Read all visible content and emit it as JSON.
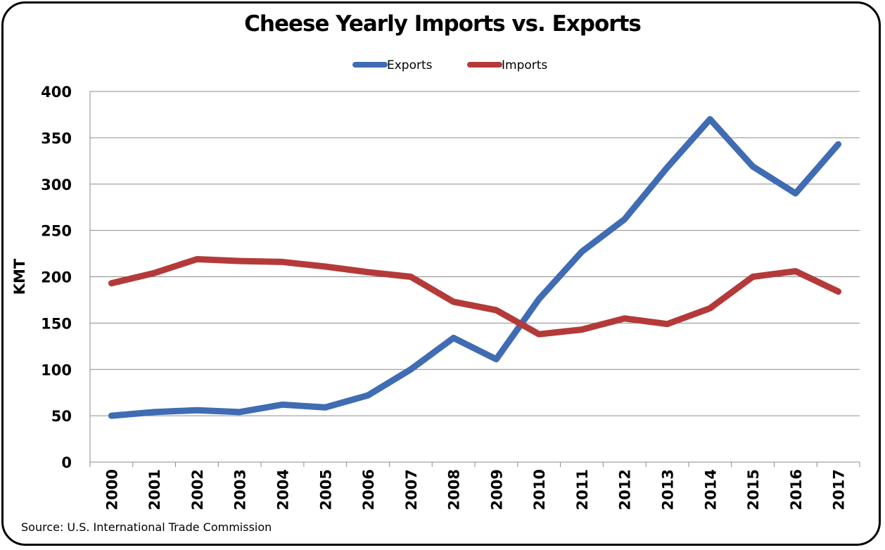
{
  "chart_data": {
    "type": "line",
    "title": "Cheese Yearly Imports vs. Exports",
    "xlabel": "",
    "ylabel": "KMT",
    "ylim": [
      0,
      400
    ],
    "yticks": [
      0,
      50,
      100,
      150,
      200,
      250,
      300,
      350,
      400
    ],
    "grid": true,
    "legend": "top",
    "categories": [
      "2000",
      "2001",
      "2002",
      "2003",
      "2004",
      "2005",
      "2006",
      "2007",
      "2008",
      "2009",
      "2010",
      "2011",
      "2012",
      "2013",
      "2014",
      "2015",
      "2016",
      "2017"
    ],
    "series": [
      {
        "name": "Exports",
        "color": "#3F6CB3",
        "values": [
          50,
          54,
          56,
          54,
          62,
          59,
          72,
          100,
          134,
          111,
          176,
          227,
          262,
          318,
          370,
          319,
          290,
          343
        ]
      },
      {
        "name": "Imports",
        "color": "#B43A3A",
        "values": [
          193,
          204,
          219,
          217,
          216,
          211,
          205,
          200,
          173,
          164,
          138,
          143,
          155,
          149,
          166,
          200,
          206,
          184
        ]
      }
    ],
    "source": "Source:  U.S. International Trade Commission"
  }
}
